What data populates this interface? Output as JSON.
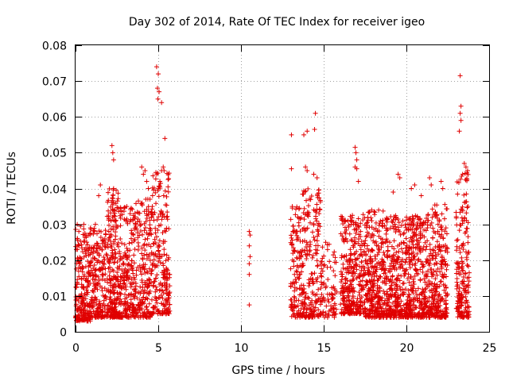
{
  "chart_data": {
    "type": "scatter",
    "title": "Day 302 of 2014, Rate Of TEC Index for receiver igeo",
    "xlabel": "GPS time / hours",
    "ylabel": "ROTI / TECUs",
    "xlim": [
      0,
      25
    ],
    "ylim": [
      0,
      0.08
    ],
    "xticks": [
      0,
      5,
      10,
      15,
      20,
      25
    ],
    "xtick_labels": [
      "0",
      "5",
      "10",
      "15",
      "20",
      "25"
    ],
    "yticks": [
      0,
      0.01,
      0.02,
      0.03,
      0.04,
      0.05,
      0.06,
      0.07,
      0.08
    ],
    "ytick_labels": [
      "0",
      "0.01",
      "0.02",
      "0.03",
      "0.04",
      "0.05",
      "0.06",
      "0.07",
      "0.08"
    ],
    "grid": true,
    "marker": "+",
    "marker_color": "#e00000",
    "clusters": [
      {
        "x": [
          0.0,
          0.9
        ],
        "y": [
          0.003,
          0.03
        ],
        "n": 220
      },
      {
        "x": [
          0.9,
          1.9
        ],
        "y": [
          0.004,
          0.03
        ],
        "n": 200
      },
      {
        "x": [
          1.9,
          2.6
        ],
        "y": [
          0.004,
          0.04
        ],
        "n": 220
      },
      {
        "x": [
          2.6,
          3.6
        ],
        "y": [
          0.004,
          0.035
        ],
        "n": 220
      },
      {
        "x": [
          3.6,
          4.6
        ],
        "y": [
          0.004,
          0.038
        ],
        "n": 200
      },
      {
        "x": [
          4.6,
          5.7
        ],
        "y": [
          0.005,
          0.045
        ],
        "n": 240
      },
      {
        "x": [
          13.0,
          13.7
        ],
        "y": [
          0.004,
          0.035
        ],
        "n": 130
      },
      {
        "x": [
          13.7,
          14.8
        ],
        "y": [
          0.004,
          0.04
        ],
        "n": 200
      },
      {
        "x": [
          14.8,
          15.8
        ],
        "y": [
          0.004,
          0.025
        ],
        "n": 90
      },
      {
        "x": [
          16.0,
          17.5
        ],
        "y": [
          0.005,
          0.033
        ],
        "n": 330
      },
      {
        "x": [
          17.5,
          18.6
        ],
        "y": [
          0.004,
          0.034
        ],
        "n": 280
      },
      {
        "x": [
          18.6,
          20.2
        ],
        "y": [
          0.004,
          0.033
        ],
        "n": 370
      },
      {
        "x": [
          20.2,
          21.5
        ],
        "y": [
          0.004,
          0.033
        ],
        "n": 300
      },
      {
        "x": [
          21.5,
          22.5
        ],
        "y": [
          0.004,
          0.036
        ],
        "n": 230
      },
      {
        "x": [
          23.0,
          23.8
        ],
        "y": [
          0.004,
          0.045
        ],
        "n": 200
      }
    ],
    "points": [
      [
        0.1,
        0.03
      ],
      [
        0.2,
        0.028
      ],
      [
        0.5,
        0.03
      ],
      [
        0.9,
        0.029
      ],
      [
        1.2,
        0.03
      ],
      [
        1.4,
        0.038
      ],
      [
        1.5,
        0.041
      ],
      [
        2.2,
        0.052
      ],
      [
        2.25,
        0.05
      ],
      [
        2.3,
        0.048
      ],
      [
        2.3,
        0.04
      ],
      [
        3.1,
        0.035
      ],
      [
        3.3,
        0.033
      ],
      [
        4.0,
        0.046
      ],
      [
        4.1,
        0.044
      ],
      [
        4.2,
        0.045
      ],
      [
        4.3,
        0.042
      ],
      [
        4.4,
        0.04
      ],
      [
        4.5,
        0.037
      ],
      [
        4.9,
        0.074
      ],
      [
        5.0,
        0.072
      ],
      [
        4.95,
        0.068
      ],
      [
        5.05,
        0.067
      ],
      [
        4.98,
        0.065
      ],
      [
        5.2,
        0.064
      ],
      [
        5.4,
        0.054
      ],
      [
        5.3,
        0.046
      ],
      [
        5.2,
        0.045
      ],
      [
        5.1,
        0.042
      ],
      [
        10.5,
        0.028
      ],
      [
        10.55,
        0.027
      ],
      [
        10.5,
        0.024
      ],
      [
        10.55,
        0.021
      ],
      [
        10.5,
        0.019
      ],
      [
        10.5,
        0.016
      ],
      [
        10.5,
        0.0075
      ],
      [
        13.05,
        0.055
      ],
      [
        13.05,
        0.0455
      ],
      [
        13.1,
        0.035
      ],
      [
        13.8,
        0.055
      ],
      [
        14.0,
        0.056
      ],
      [
        13.9,
        0.046
      ],
      [
        14.0,
        0.045
      ],
      [
        14.5,
        0.061
      ],
      [
        14.45,
        0.0565
      ],
      [
        14.4,
        0.044
      ],
      [
        14.6,
        0.043
      ],
      [
        16.9,
        0.0515
      ],
      [
        16.95,
        0.05
      ],
      [
        17.0,
        0.048
      ],
      [
        16.9,
        0.046
      ],
      [
        17.0,
        0.0455
      ],
      [
        17.1,
        0.042
      ],
      [
        19.2,
        0.039
      ],
      [
        19.5,
        0.044
      ],
      [
        19.6,
        0.043
      ],
      [
        20.3,
        0.04
      ],
      [
        20.5,
        0.041
      ],
      [
        20.9,
        0.038
      ],
      [
        21.4,
        0.043
      ],
      [
        21.5,
        0.041
      ],
      [
        22.1,
        0.042
      ],
      [
        22.2,
        0.04
      ],
      [
        23.25,
        0.0715
      ],
      [
        23.3,
        0.063
      ],
      [
        23.25,
        0.061
      ],
      [
        23.3,
        0.059
      ],
      [
        23.2,
        0.056
      ],
      [
        23.5,
        0.047
      ],
      [
        23.6,
        0.046
      ],
      [
        23.7,
        0.045
      ],
      [
        23.4,
        0.044
      ]
    ]
  }
}
